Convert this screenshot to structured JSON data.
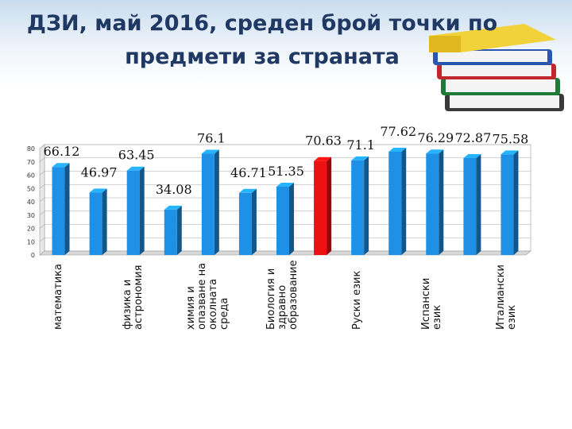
{
  "chart_data": {
    "type": "bar3d",
    "title": [
      "ДЗИ, май 2016, среден брой точки по",
      "предмети за страната"
    ],
    "categories": [
      "математика",
      null,
      "физика и астрономия",
      null,
      "химия и опазване на околната среда",
      null,
      "Биология и здравно образование",
      null,
      "Руски език",
      null,
      "Испански език",
      null,
      "Италиански език"
    ],
    "values": [
      66.12,
      46.97,
      63.45,
      34.08,
      76.1,
      46.71,
      51.35,
      70.63,
      71.1,
      77.62,
      76.29,
      72.87,
      75.58
    ],
    "colors": [
      "#1e90e6",
      "#1e90e6",
      "#1e90e6",
      "#1e90e6",
      "#1e90e6",
      "#1e90e6",
      "#1e90e6",
      "#ee1111",
      "#1e90e6",
      "#1e90e6",
      "#1e90e6",
      "#1e90e6",
      "#1e90e6"
    ],
    "ylim": [
      0,
      80
    ],
    "yticks": [
      0,
      10,
      20,
      30,
      40,
      50,
      60,
      70,
      80
    ],
    "grid": true
  }
}
